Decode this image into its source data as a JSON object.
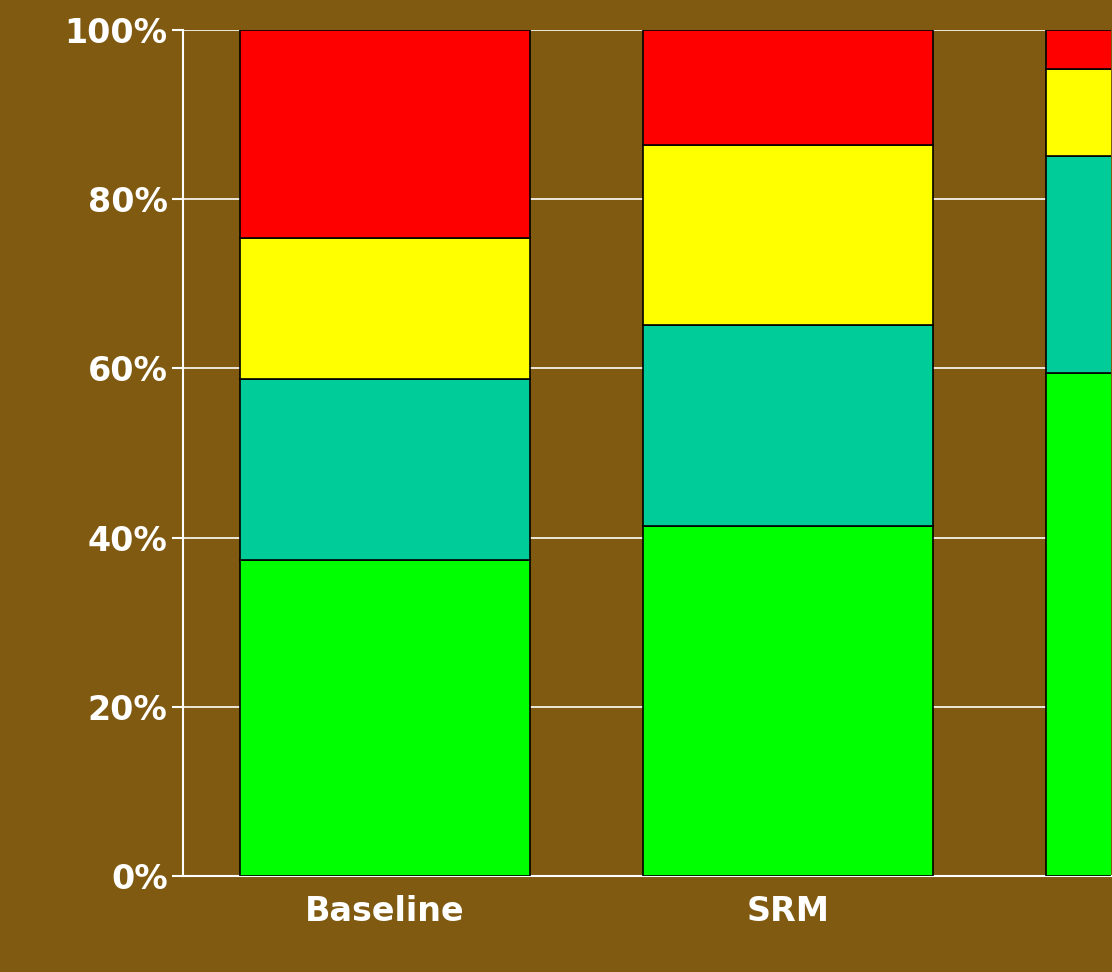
{
  "chart_data": {
    "type": "bar",
    "stacked": true,
    "categories": [
      "Baseline",
      "SRM",
      null
    ],
    "series": [
      {
        "color": "#00ff00",
        "values": [
          37.4,
          41.4,
          59.5
        ]
      },
      {
        "color": "#00cc99",
        "values": [
          21.3,
          23.7,
          25.6
        ]
      },
      {
        "color": "#ffff00",
        "values": [
          16.7,
          21.3,
          10.3
        ]
      },
      {
        "color": "#ff0000",
        "values": [
          24.6,
          13.6,
          4.6
        ]
      }
    ],
    "ylim": [
      0,
      100
    ],
    "yticks": [
      {
        "value": 0,
        "label": "0%"
      },
      {
        "value": 20,
        "label": "20%"
      },
      {
        "value": 40,
        "label": "40%"
      },
      {
        "value": 60,
        "label": "60%"
      },
      {
        "value": 80,
        "label": "80%"
      },
      {
        "value": 100,
        "label": "100%"
      }
    ],
    "grid": true
  }
}
